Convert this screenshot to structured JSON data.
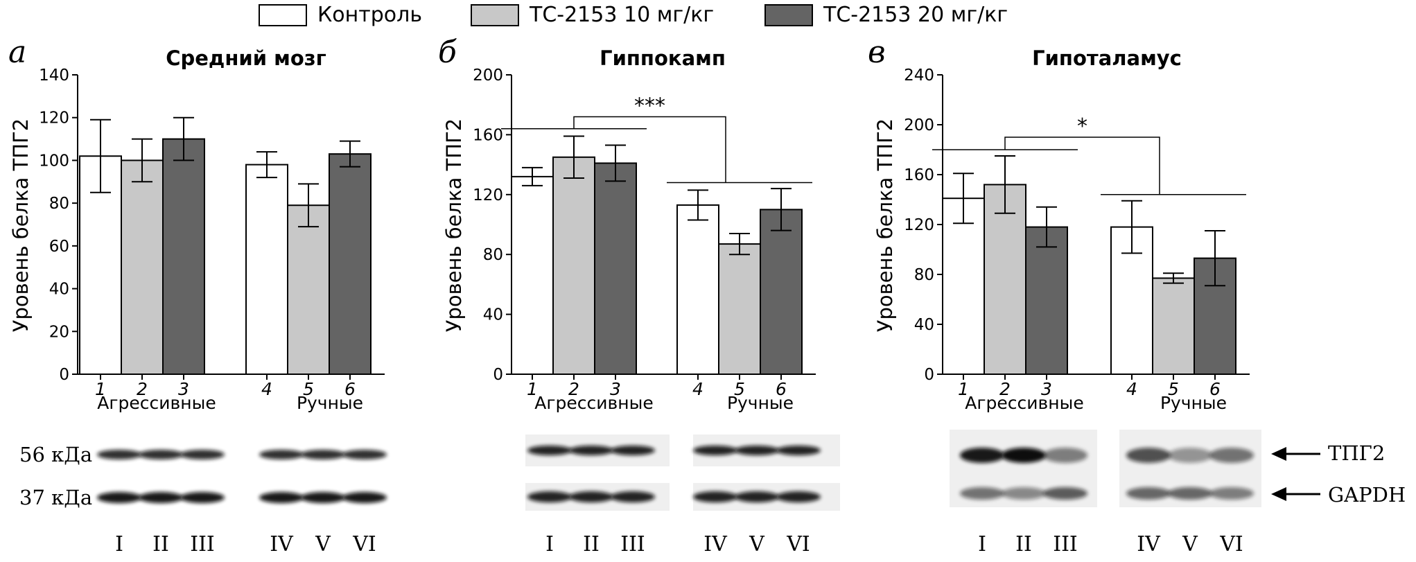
{
  "legend": [
    {
      "label": "Контроль",
      "color": "#ffffff"
    },
    {
      "label": "ТС-2153 10 мг/кг",
      "color": "#c8c8c8"
    },
    {
      "label": "ТС-2153 20 мг/кг",
      "color": "#646464"
    }
  ],
  "groups": {
    "aggressive": "Агрессивные",
    "tame": "Ручные"
  },
  "ylabel": "Уровень белка ТПГ2",
  "bar_numbers": [
    "1",
    "2",
    "3",
    "4",
    "5",
    "6"
  ],
  "lane_labels": [
    "I",
    "II",
    "III",
    "IV",
    "V",
    "VI"
  ],
  "blot_labels": {
    "kda56": "56 кДа",
    "kda37": "37 кДа",
    "tpg2": "ТПГ2",
    "gapdh": "GAPDH"
  },
  "chart_data": [
    {
      "type": "bar",
      "panel_letter": "а",
      "title": "Средний мозг",
      "categories": [
        "1",
        "2",
        "3",
        "4",
        "5",
        "6"
      ],
      "values": [
        102,
        100,
        110,
        98,
        79,
        103
      ],
      "errors": [
        17,
        10,
        10,
        6,
        10,
        6
      ],
      "yticks": [
        0,
        20,
        40,
        60,
        80,
        100,
        120,
        140
      ],
      "ylim": [
        0,
        140
      ],
      "significance": null
    },
    {
      "type": "bar",
      "panel_letter": "б",
      "title": "Гиппокамп",
      "categories": [
        "1",
        "2",
        "3",
        "4",
        "5",
        "6"
      ],
      "values": [
        132,
        145,
        141,
        113,
        87,
        110
      ],
      "errors": [
        6,
        14,
        12,
        10,
        7,
        14
      ],
      "yticks": [
        0,
        40,
        80,
        120,
        160,
        200
      ],
      "ylim": [
        0,
        200
      ],
      "significance": {
        "label": "***",
        "y_left": 164,
        "y_right": 128,
        "y_top": 172
      }
    },
    {
      "type": "bar",
      "panel_letter": "в",
      "title": "Гипоталамус",
      "categories": [
        "1",
        "2",
        "3",
        "4",
        "5",
        "6"
      ],
      "values": [
        141,
        152,
        118,
        118,
        77,
        93
      ],
      "errors": [
        20,
        23,
        16,
        21,
        4,
        22
      ],
      "yticks": [
        0,
        40,
        80,
        120,
        160,
        200,
        240
      ],
      "ylim": [
        0,
        240
      ],
      "significance": {
        "label": "*",
        "y_left": 180,
        "y_right": 144,
        "y_top": 190
      }
    }
  ]
}
